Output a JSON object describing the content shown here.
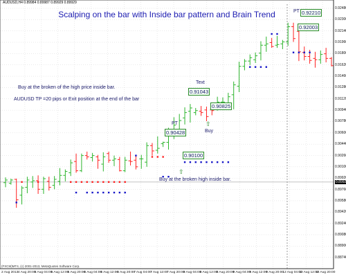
{
  "header": {
    "symbol_line": "AUDUSD,H4  0.89984 0.89987 0.89929 0.89929"
  },
  "title": "Scalping on the bar with Inside bar pattern and Brain Trend",
  "notes": {
    "line1": "Buy at the broken of the high price inside bar.",
    "line2": "AUDUSD TP =20 pips or Exit position at the end of the bar",
    "line3": "Buy at the broken high inside bar."
  },
  "labels": {
    "text": "Text",
    "pt": "PT",
    "buy": "Buy",
    "p1": "0.91043",
    "p2": "0.90825",
    "p3": "0.90428",
    "p4": "0.90100",
    "p5": "0.92210",
    "p6": "0.92003",
    "p7": "PT"
  },
  "copyright": "(FXCM)MT4, (c) 2001-2013, MetaQuotes Software Corp.",
  "colors": {
    "bull": "#2db52d",
    "bear": "#ff2020",
    "dot_up": "#1515c8",
    "dot_down": "#ff2020",
    "grid": "#d6d6d6",
    "title": "#1a1ab0"
  },
  "y_axis": {
    "labels": [
      "0.92480",
      "0.92300",
      "0.92140",
      "0.91960",
      "0.91800",
      "0.91620",
      "0.91460",
      "0.91280",
      "0.91120",
      "0.90940",
      "0.90780",
      "0.90600",
      "0.90440",
      "0.90260",
      "0.90100",
      "0.89920",
      "0.89760",
      "0.89580",
      "0.89420",
      "0.89240",
      "0.89080",
      "0.88900",
      "0.88740"
    ],
    "current_price": "0.89929"
  },
  "x_axis": {
    "labels": [
      "2 Aug 2013",
      "4 Aug 20:00",
      "5 Aug 04:00",
      "5 Aug 12:00",
      "5 Aug 20:00",
      "6 Aug 04:00",
      "6 Aug 12:00",
      "6 Aug 20:00",
      "7 Aug 04:00",
      "7 Aug 12:00",
      "7 Aug 20:00",
      "8 Aug 04:00",
      "8 Aug 12:00",
      "8 Aug 20:00",
      "9 Aug 04:00",
      "9 Aug 12:00",
      "9 Aug 20:00",
      "12 Aug 04:00",
      "12 Aug 12:00",
      "12 Aug 20:00"
    ]
  },
  "chart_data": {
    "type": "candlestick",
    "symbol": "AUDUSD",
    "timeframe": "H4",
    "ylim": [
      0.8866,
      0.926
    ],
    "bars": [
      {
        "o": 0.8992,
        "h": 0.9,
        "l": 0.8985,
        "c": 0.8996
      },
      {
        "o": 0.8991,
        "h": 0.8998,
        "l": 0.8989,
        "c": 0.8996
      },
      {
        "o": 0.8997,
        "h": 0.8998,
        "l": 0.8954,
        "c": 0.8966
      },
      {
        "o": 0.8973,
        "h": 0.8987,
        "l": 0.8959,
        "c": 0.8984
      },
      {
        "o": 0.8985,
        "h": 0.9001,
        "l": 0.8976,
        "c": 0.8996
      },
      {
        "o": 0.8993,
        "h": 0.9002,
        "l": 0.8984,
        "c": 0.8995
      },
      {
        "o": 0.8995,
        "h": 0.9003,
        "l": 0.8975,
        "c": 0.8982
      },
      {
        "o": 0.8982,
        "h": 0.9001,
        "l": 0.8975,
        "c": 0.8998
      },
      {
        "o": 0.8994,
        "h": 0.9001,
        "l": 0.898,
        "c": 0.8985
      },
      {
        "o": 0.8988,
        "h": 0.9002,
        "l": 0.8982,
        "c": 0.8997
      },
      {
        "o": 0.8994,
        "h": 0.9014,
        "l": 0.8988,
        "c": 0.9003
      },
      {
        "o": 0.9003,
        "h": 0.9012,
        "l": 0.8994,
        "c": 0.9009
      },
      {
        "o": 0.9007,
        "h": 0.9027,
        "l": 0.9002,
        "c": 0.9022
      },
      {
        "o": 0.9024,
        "h": 0.9036,
        "l": 0.9007,
        "c": 0.901
      },
      {
        "o": 0.901,
        "h": 0.9036,
        "l": 0.9008,
        "c": 0.9033
      },
      {
        "o": 0.9033,
        "h": 0.9039,
        "l": 0.9027,
        "c": 0.9031
      },
      {
        "o": 0.903,
        "h": 0.9037,
        "l": 0.9024,
        "c": 0.9033
      },
      {
        "o": 0.9031,
        "h": 0.9034,
        "l": 0.9013,
        "c": 0.9026
      },
      {
        "o": 0.902,
        "h": 0.9038,
        "l": 0.9009,
        "c": 0.9031
      },
      {
        "o": 0.9036,
        "h": 0.9039,
        "l": 0.9022,
        "c": 0.9026
      },
      {
        "o": 0.9026,
        "h": 0.9033,
        "l": 0.9017,
        "c": 0.9028
      },
      {
        "o": 0.9027,
        "h": 0.9031,
        "l": 0.9009,
        "c": 0.901
      },
      {
        "o": 0.901,
        "h": 0.9031,
        "l": 0.9008,
        "c": 0.9026
      },
      {
        "o": 0.9025,
        "h": 0.9039,
        "l": 0.9018,
        "c": 0.9024
      },
      {
        "o": 0.9026,
        "h": 0.9033,
        "l": 0.9012,
        "c": 0.9016
      },
      {
        "o": 0.9028,
        "h": 0.9034,
        "l": 0.9013,
        "c": 0.9028
      },
      {
        "o": 0.9023,
        "h": 0.9053,
        "l": 0.9016,
        "c": 0.9048
      },
      {
        "o": 0.9048,
        "h": 0.9052,
        "l": 0.9033,
        "c": 0.904
      },
      {
        "o": 0.9041,
        "h": 0.9062,
        "l": 0.9036,
        "c": 0.9044
      },
      {
        "o": 0.9051,
        "h": 0.9054,
        "l": 0.9046,
        "c": 0.9053
      },
      {
        "o": 0.9053,
        "h": 0.9075,
        "l": 0.9042,
        "c": 0.907
      },
      {
        "o": 0.907,
        "h": 0.9091,
        "l": 0.9058,
        "c": 0.9079
      },
      {
        "o": 0.907,
        "h": 0.9096,
        "l": 0.9069,
        "c": 0.9086
      },
      {
        "o": 0.909,
        "h": 0.9106,
        "l": 0.908,
        "c": 0.9098
      },
      {
        "o": 0.91,
        "h": 0.9111,
        "l": 0.9083,
        "c": 0.9105
      },
      {
        "o": 0.9098,
        "h": 0.9105,
        "l": 0.9094,
        "c": 0.9101
      },
      {
        "o": 0.91,
        "h": 0.9108,
        "l": 0.9093,
        "c": 0.9098
      },
      {
        "o": 0.9102,
        "h": 0.9107,
        "l": 0.9085,
        "c": 0.9092
      },
      {
        "o": 0.9102,
        "h": 0.9106,
        "l": 0.9094,
        "c": 0.9101
      },
      {
        "o": 0.9107,
        "h": 0.9122,
        "l": 0.9101,
        "c": 0.9114
      },
      {
        "o": 0.9114,
        "h": 0.9121,
        "l": 0.9107,
        "c": 0.9114
      },
      {
        "o": 0.9112,
        "h": 0.9128,
        "l": 0.9105,
        "c": 0.9122
      },
      {
        "o": 0.9125,
        "h": 0.9145,
        "l": 0.9103,
        "c": 0.914
      },
      {
        "o": 0.9138,
        "h": 0.9175,
        "l": 0.9129,
        "c": 0.9168
      },
      {
        "o": 0.9168,
        "h": 0.9179,
        "l": 0.9162,
        "c": 0.9176
      },
      {
        "o": 0.9176,
        "h": 0.9186,
        "l": 0.917,
        "c": 0.9181
      },
      {
        "o": 0.9178,
        "h": 0.9189,
        "l": 0.9173,
        "c": 0.9184
      },
      {
        "o": 0.9188,
        "h": 0.9206,
        "l": 0.9177,
        "c": 0.92
      },
      {
        "o": 0.92,
        "h": 0.9213,
        "l": 0.919,
        "c": 0.9202
      },
      {
        "o": 0.9204,
        "h": 0.9211,
        "l": 0.9196,
        "c": 0.9198
      },
      {
        "o": 0.92,
        "h": 0.9214,
        "l": 0.9196,
        "c": 0.9201
      },
      {
        "o": 0.9202,
        "h": 0.9208,
        "l": 0.9194,
        "c": 0.9205
      },
      {
        "o": 0.9205,
        "h": 0.9234,
        "l": 0.9199,
        "c": 0.9228
      },
      {
        "o": 0.9228,
        "h": 0.9234,
        "l": 0.9205,
        "c": 0.921
      },
      {
        "o": 0.9221,
        "h": 0.9222,
        "l": 0.9176,
        "c": 0.919
      },
      {
        "o": 0.9189,
        "h": 0.9198,
        "l": 0.9177,
        "c": 0.9183
      },
      {
        "o": 0.9183,
        "h": 0.9193,
        "l": 0.9172,
        "c": 0.9177
      },
      {
        "o": 0.918,
        "h": 0.919,
        "l": 0.9166,
        "c": 0.9178
      },
      {
        "o": 0.9178,
        "h": 0.9192,
        "l": 0.9172,
        "c": 0.9186
      },
      {
        "o": 0.9187,
        "h": 0.9196,
        "l": 0.9174,
        "c": 0.918
      },
      {
        "o": 0.918,
        "h": 0.9182,
        "l": 0.9168,
        "c": 0.9169
      }
    ],
    "dots": [
      {
        "bar": 2,
        "side": "up",
        "p": 0.8962
      },
      {
        "bar": 3,
        "side": "down",
        "p": 0.8993
      },
      {
        "bar": 6,
        "side": "down",
        "p": 0.8993
      },
      {
        "bar": 12,
        "side": "down",
        "p": 0.8993
      },
      {
        "bar": 13,
        "side": "down",
        "p": 0.8993
      },
      {
        "bar": 14,
        "side": "down",
        "p": 0.8993
      },
      {
        "bar": 15,
        "side": "down",
        "p": 0.8993
      },
      {
        "bar": 16,
        "side": "down",
        "p": 0.8993
      },
      {
        "bar": 17,
        "side": "down",
        "p": 0.8993
      },
      {
        "bar": 18,
        "side": "down",
        "p": 0.8993
      },
      {
        "bar": 19,
        "side": "down",
        "p": 0.8993
      },
      {
        "bar": 20,
        "side": "down",
        "p": 0.8993
      },
      {
        "bar": 21,
        "side": "down",
        "p": 0.8993
      },
      {
        "bar": 22,
        "side": "down",
        "p": 0.8993
      },
      {
        "bar": 13,
        "side": "up",
        "p": 0.8977
      },
      {
        "bar": 15,
        "side": "up",
        "p": 0.8977
      },
      {
        "bar": 16,
        "side": "up",
        "p": 0.8977
      },
      {
        "bar": 17,
        "side": "up",
        "p": 0.8977
      },
      {
        "bar": 18,
        "side": "up",
        "p": 0.8977
      },
      {
        "bar": 19,
        "side": "up",
        "p": 0.8977
      },
      {
        "bar": 20,
        "side": "up",
        "p": 0.8977
      },
      {
        "bar": 21,
        "side": "up",
        "p": 0.8977
      },
      {
        "bar": 22,
        "side": "up",
        "p": 0.8977
      },
      {
        "bar": 24,
        "side": "up",
        "p": 0.9033
      },
      {
        "bar": 27,
        "side": "down",
        "p": 0.9031
      },
      {
        "bar": 28,
        "side": "down",
        "p": 0.9031
      },
      {
        "bar": 29,
        "side": "down",
        "p": 0.9031
      },
      {
        "bar": 29,
        "side": "up",
        "p": 0.9001
      },
      {
        "bar": 30,
        "side": "up",
        "p": 0.9001
      },
      {
        "bar": 33,
        "side": "up",
        "p": 0.9023
      },
      {
        "bar": 34,
        "side": "up",
        "p": 0.9023
      },
      {
        "bar": 35,
        "side": "up",
        "p": 0.9023
      },
      {
        "bar": 36,
        "side": "up",
        "p": 0.9023
      },
      {
        "bar": 37,
        "side": "up",
        "p": 0.9023
      },
      {
        "bar": 38,
        "side": "up",
        "p": 0.9023
      },
      {
        "bar": 39,
        "side": "up",
        "p": 0.9023
      },
      {
        "bar": 40,
        "side": "up",
        "p": 0.9023
      },
      {
        "bar": 41,
        "side": "up",
        "p": 0.9023
      },
      {
        "bar": 45,
        "side": "up",
        "p": 0.9167
      },
      {
        "bar": 46,
        "side": "up",
        "p": 0.9167
      },
      {
        "bar": 47,
        "side": "up",
        "p": 0.9167
      },
      {
        "bar": 48,
        "side": "up",
        "p": 0.9167
      },
      {
        "bar": 49,
        "side": "up",
        "p": 0.9217
      },
      {
        "bar": 50,
        "side": "up",
        "p": 0.9217
      },
      {
        "bar": 53,
        "side": "up",
        "p": 0.9189
      },
      {
        "bar": 54,
        "side": "up",
        "p": 0.9189
      },
      {
        "bar": 55,
        "side": "up",
        "p": 0.9189
      },
      {
        "bar": 56,
        "side": "up",
        "p": 0.9189
      }
    ],
    "current_price": 0.89929
  }
}
